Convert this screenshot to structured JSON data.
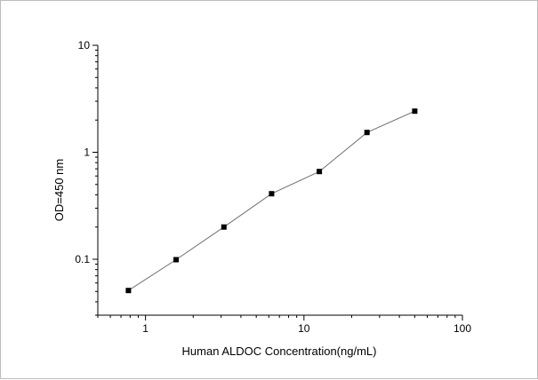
{
  "chart_data": {
    "type": "line",
    "title": "",
    "xlabel": "Human ALDOC Concentration(ng/mL)",
    "ylabel": "OD=450 nm",
    "xscale": "log",
    "yscale": "log",
    "xlim": [
      0.5,
      100
    ],
    "ylim": [
      0.03,
      10
    ],
    "x_ticks": [
      "1",
      "10",
      "100"
    ],
    "y_ticks": [
      "0.1",
      "1",
      "10"
    ],
    "grid": false,
    "legend": "none",
    "series": [
      {
        "x": [
          0.78,
          1.56,
          3.125,
          6.25,
          12.5,
          25,
          50
        ],
        "y": [
          0.051,
          0.099,
          0.2,
          0.41,
          0.66,
          1.53,
          2.42
        ],
        "marker": "square",
        "color": "#000000",
        "line_color": "#6e6e6e"
      }
    ]
  }
}
